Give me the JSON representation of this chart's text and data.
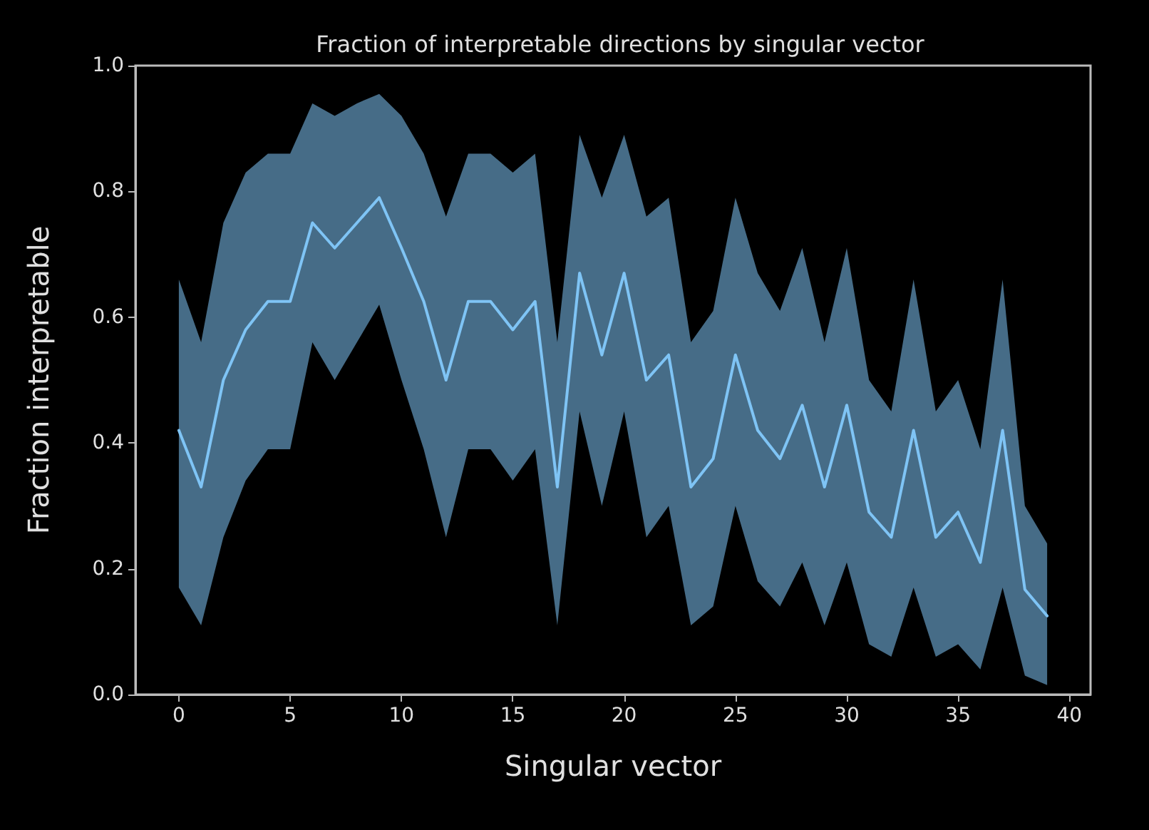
{
  "chart_data": {
    "type": "line",
    "title": "Fraction of interpretable directions by singular vector",
    "xlabel": "Singular vector",
    "ylabel": "Fraction interpretable",
    "x": [
      0,
      1,
      2,
      3,
      4,
      5,
      6,
      7,
      8,
      9,
      10,
      11,
      12,
      13,
      14,
      15,
      16,
      17,
      18,
      19,
      20,
      21,
      22,
      23,
      24,
      25,
      26,
      27,
      28,
      29,
      30,
      31,
      32,
      33,
      34,
      35,
      36,
      37,
      38,
      39
    ],
    "series": [
      {
        "color": "#7fc4f5",
        "values": [
          0.42,
          0.33,
          0.5,
          0.58,
          0.625,
          0.625,
          0.75,
          0.71,
          0.75,
          0.79,
          0.71,
          0.625,
          0.5,
          0.625,
          0.625,
          0.58,
          0.625,
          0.33,
          0.67,
          0.54,
          0.67,
          0.5,
          0.54,
          0.33,
          0.375,
          0.54,
          0.42,
          0.375,
          0.46,
          0.33,
          0.46,
          0.29,
          0.25,
          0.42,
          0.25,
          0.29,
          0.21,
          0.42,
          0.167,
          0.125
        ],
        "lower": [
          0.17,
          0.11,
          0.25,
          0.34,
          0.39,
          0.39,
          0.56,
          0.5,
          0.56,
          0.62,
          0.5,
          0.39,
          0.25,
          0.39,
          0.39,
          0.34,
          0.39,
          0.11,
          0.45,
          0.3,
          0.45,
          0.25,
          0.3,
          0.11,
          0.14,
          0.3,
          0.18,
          0.14,
          0.21,
          0.11,
          0.21,
          0.08,
          0.06,
          0.17,
          0.06,
          0.08,
          0.04,
          0.17,
          0.03,
          0.015
        ],
        "upper": [
          0.66,
          0.56,
          0.75,
          0.83,
          0.86,
          0.86,
          0.94,
          0.92,
          0.94,
          0.955,
          0.92,
          0.86,
          0.76,
          0.86,
          0.86,
          0.83,
          0.86,
          0.56,
          0.89,
          0.79,
          0.89,
          0.76,
          0.79,
          0.56,
          0.61,
          0.79,
          0.67,
          0.61,
          0.71,
          0.56,
          0.71,
          0.5,
          0.45,
          0.66,
          0.45,
          0.5,
          0.39,
          0.66,
          0.3,
          0.24
        ]
      }
    ],
    "xlim": [
      -1.95,
      40.95
    ],
    "xticks": [
      0,
      5,
      10,
      15,
      20,
      25,
      30,
      35,
      40
    ],
    "ylim": [
      0,
      1
    ],
    "yticks": [
      {
        "value": 0,
        "label": "0.0"
      },
      {
        "value": 0.2,
        "label": "0.2"
      },
      {
        "value": 0.4,
        "label": "0.4"
      },
      {
        "value": 0.6,
        "label": "0.6"
      },
      {
        "value": 0.8,
        "label": "0.8"
      },
      {
        "value": 1,
        "label": "1.0"
      }
    ],
    "grid": false,
    "marker": "none",
    "line_style": "solid"
  }
}
